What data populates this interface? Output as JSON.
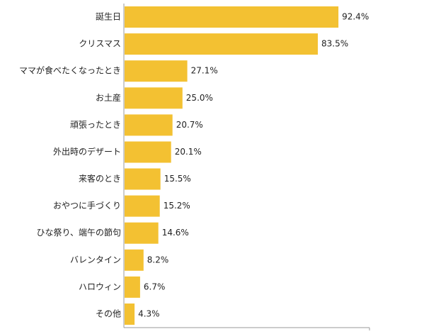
{
  "chart_data": {
    "type": "bar",
    "orientation": "horizontal",
    "categories": [
      "誕生日",
      "クリスマス",
      "ママが食べたくなったとき",
      "お土産",
      "頑張ったとき",
      "外出時のデザート",
      "来客のとき",
      "おやつに手づくり",
      "ひな祭り、端午の節句",
      "バレンタイン",
      "ハロウィン",
      "その他"
    ],
    "values": [
      92.4,
      83.5,
      27.1,
      25.0,
      20.7,
      20.1,
      15.5,
      15.2,
      14.6,
      8.2,
      6.7,
      4.3
    ],
    "value_labels": [
      "92.4%",
      "83.5%",
      "27.1%",
      "25.0%",
      "20.7%",
      "20.1%",
      "15.5%",
      "15.2%",
      "14.6%",
      "8.2%",
      "6.7%",
      "4.3%"
    ],
    "title": "",
    "xlabel": "",
    "ylabel": "",
    "xlim": [
      0,
      100
    ],
    "grid": false,
    "legend": "none",
    "bar_color": "#F3C132",
    "axis_color": "#999999"
  }
}
